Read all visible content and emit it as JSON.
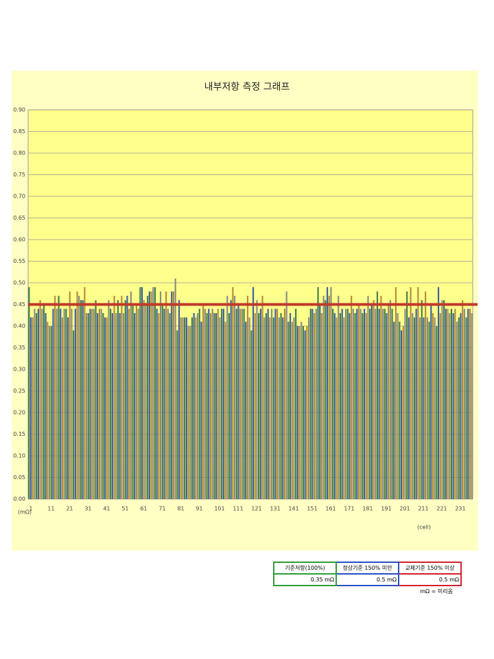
{
  "chart_data": {
    "type": "bar",
    "title": "내부저항 측정 그래프",
    "y_unit": "(mΩ)",
    "x_unit": "(cell)",
    "categories": [
      "1",
      null,
      null,
      null,
      null,
      null,
      null,
      null,
      null,
      null,
      "11",
      null,
      null,
      null,
      null,
      null,
      null,
      null,
      null,
      null,
      "21",
      null,
      null,
      null,
      null,
      null,
      null,
      null,
      null,
      null,
      "31",
      null,
      null,
      null,
      null,
      null,
      null,
      null,
      null,
      null,
      "41",
      null,
      null,
      null,
      null,
      null,
      null,
      null,
      null,
      null,
      "51",
      null,
      null,
      null,
      null,
      null,
      null,
      null,
      null,
      null,
      "61",
      null,
      null,
      null,
      null,
      null,
      null,
      null,
      null,
      null,
      "71",
      null,
      null,
      null,
      null,
      null,
      null,
      null,
      null,
      null,
      "81",
      null,
      null,
      null,
      null,
      null,
      null,
      null,
      null,
      null,
      "91",
      null,
      null,
      null,
      null,
      null,
      null,
      null,
      null,
      null,
      "101",
      null,
      null,
      null,
      null,
      null,
      null,
      null,
      null,
      null,
      "111",
      null,
      null,
      null,
      null,
      null,
      null,
      null,
      null,
      null,
      "121",
      null,
      null,
      null,
      null,
      null,
      null,
      null,
      null,
      null,
      "131",
      null,
      null,
      null,
      null,
      null,
      null,
      null,
      null,
      null,
      "141",
      null,
      null,
      null,
      null,
      null,
      null,
      null,
      null,
      null,
      "151",
      null,
      null,
      null,
      null,
      null,
      null,
      null,
      null,
      null,
      "161",
      null,
      null,
      null,
      null,
      null,
      null,
      null,
      null,
      null,
      "171",
      null,
      null,
      null,
      null,
      null,
      null,
      null,
      null,
      null,
      "181",
      null,
      null,
      null,
      null,
      null,
      null,
      null,
      null,
      null,
      "191",
      null,
      null,
      null,
      null,
      null,
      null,
      null,
      null,
      null,
      "201",
      null,
      null,
      null,
      null,
      null,
      null,
      null,
      null,
      null,
      "211",
      null,
      null,
      null,
      null,
      null,
      null,
      null,
      null,
      null,
      "221",
      null,
      null,
      null,
      null,
      null,
      null,
      null,
      null,
      null,
      "231",
      null,
      null,
      null,
      null,
      null,
      null,
      null,
      null,
      null
    ],
    "values": [
      0.49,
      0.42,
      0.42,
      0.44,
      0.43,
      0.44,
      0.46,
      0.44,
      0.45,
      0.43,
      0.41,
      0.4,
      0.4,
      0.44,
      0.47,
      0.44,
      0.47,
      0.44,
      0.42,
      0.44,
      0.44,
      0.42,
      0.48,
      0.44,
      0.39,
      0.44,
      0.48,
      0.47,
      0.46,
      0.46,
      0.49,
      0.43,
      0.43,
      0.44,
      0.44,
      0.44,
      0.46,
      0.43,
      0.44,
      0.44,
      0.43,
      0.42,
      0.42,
      0.46,
      0.44,
      0.43,
      0.47,
      0.43,
      0.46,
      0.43,
      0.47,
      0.43,
      0.46,
      0.47,
      0.44,
      0.48,
      0.45,
      0.43,
      0.45,
      0.44,
      0.49,
      0.49,
      0.46,
      0.45,
      0.47,
      0.48,
      0.48,
      0.49,
      0.49,
      0.44,
      0.43,
      0.48,
      0.45,
      0.44,
      0.48,
      0.44,
      0.43,
      0.48,
      0.48,
      0.51,
      0.39,
      0.46,
      0.42,
      0.42,
      0.42,
      0.42,
      0.4,
      0.4,
      0.42,
      0.43,
      0.42,
      0.43,
      0.44,
      0.41,
      0.45,
      0.44,
      0.43,
      0.44,
      0.43,
      0.44,
      0.43,
      0.43,
      0.44,
      0.42,
      0.44,
      0.44,
      0.41,
      0.47,
      0.43,
      0.46,
      0.49,
      0.47,
      0.44,
      0.45,
      0.44,
      0.44,
      0.44,
      0.41,
      0.47,
      0.42,
      0.39,
      0.49,
      0.43,
      0.46,
      0.43,
      0.44,
      0.47,
      0.42,
      0.43,
      0.44,
      0.42,
      0.44,
      0.42,
      0.44,
      0.44,
      0.42,
      0.43,
      0.42,
      0.44,
      0.48,
      0.41,
      0.43,
      0.41,
      0.42,
      0.44,
      0.4,
      0.4,
      0.41,
      0.4,
      0.39,
      0.4,
      0.42,
      0.44,
      0.44,
      0.43,
      0.44,
      0.49,
      0.45,
      0.43,
      0.47,
      0.46,
      0.49,
      0.47,
      0.49,
      0.44,
      0.43,
      0.42,
      0.47,
      0.43,
      0.44,
      0.42,
      0.44,
      0.44,
      0.43,
      0.47,
      0.44,
      0.43,
      0.44,
      0.45,
      0.44,
      0.43,
      0.44,
      0.43,
      0.47,
      0.44,
      0.45,
      0.46,
      0.44,
      0.48,
      0.44,
      0.47,
      0.44,
      0.44,
      0.43,
      0.45,
      0.46,
      0.44,
      0.41,
      0.49,
      0.43,
      0.41,
      0.39,
      0.4,
      0.44,
      0.48,
      0.42,
      0.49,
      0.43,
      0.42,
      0.44,
      0.49,
      0.42,
      0.46,
      0.42,
      0.48,
      0.42,
      0.41,
      0.45,
      0.43,
      0.42,
      0.4,
      0.49,
      0.43,
      0.46,
      0.46,
      0.44,
      0.44,
      0.43,
      0.44,
      0.43,
      0.44,
      0.41,
      0.42,
      0.43,
      0.46,
      0.44,
      0.42,
      0.44,
      0.44,
      0.43
    ],
    "bar_colors": [
      "#3f7f4a",
      "#3d5fa6",
      "#b48a3c",
      "#8b8b86"
    ],
    "reference_line": {
      "value": 0.45,
      "color": "#c0392b"
    },
    "ylim": [
      0,
      0.9
    ],
    "yticks": [
      {
        "value": 0,
        "label": "0.00"
      },
      {
        "value": 0.05,
        "label": "0.05"
      },
      {
        "value": 0.1,
        "label": "0.10"
      },
      {
        "value": 0.15,
        "label": "0.15"
      },
      {
        "value": 0.2,
        "label": "0.20"
      },
      {
        "value": 0.25,
        "label": "0.25"
      },
      {
        "value": 0.3,
        "label": "0.30"
      },
      {
        "value": 0.35,
        "label": "0.35"
      },
      {
        "value": 0.4,
        "label": "0.40"
      },
      {
        "value": 0.45,
        "label": "0.45"
      },
      {
        "value": 0.5,
        "label": "0.50"
      },
      {
        "value": 0.55,
        "label": "0.55"
      },
      {
        "value": 0.6,
        "label": "0.60"
      },
      {
        "value": 0.65,
        "label": "0.65"
      },
      {
        "value": 0.7,
        "label": "0.70"
      },
      {
        "value": 0.75,
        "label": "0.75"
      },
      {
        "value": 0.8,
        "label": "0.80"
      },
      {
        "value": 0.85,
        "label": "0.85"
      },
      {
        "value": 0.9,
        "label": "0.90"
      }
    ],
    "grid": true
  },
  "legend_table": {
    "headers": [
      "기준저항(100%)",
      "정상기준 150% 미만",
      "교체기준 150% 이상"
    ],
    "values": [
      "0.35  mΩ",
      "0.5  mΩ",
      "0.5  mΩ"
    ],
    "note": "mΩ = 미리옴"
  }
}
